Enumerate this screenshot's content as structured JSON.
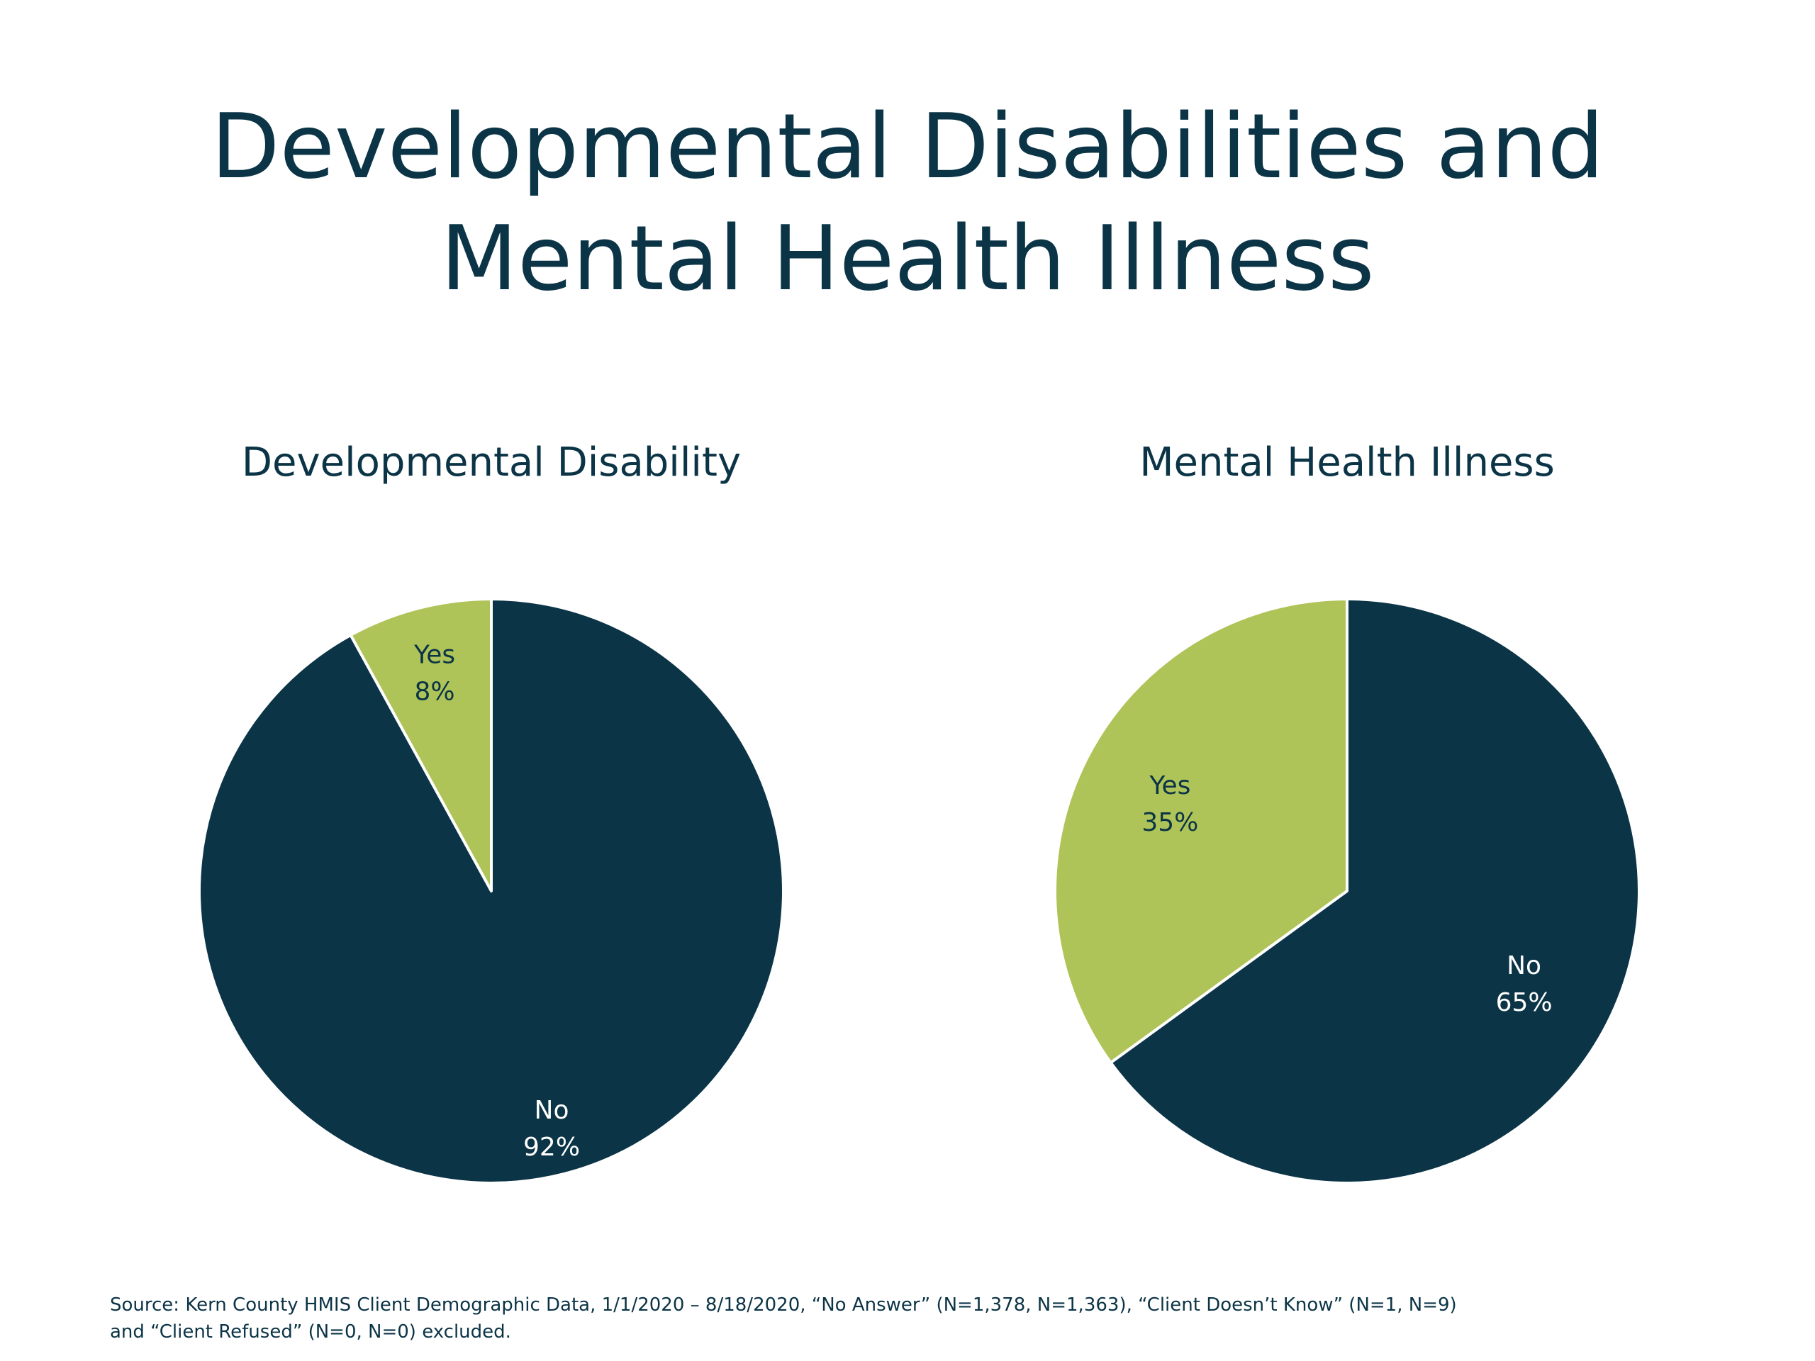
{
  "title_lines": [
    "Developmental Disabilities and",
    "Mental Health Illness"
  ],
  "colors": {
    "no": "#0b3446",
    "yes": "#afc458",
    "no_label_text": "#ffffff",
    "yes_label_text": "#0b3446"
  },
  "chart_data": [
    {
      "type": "pie",
      "title": "Developmental Disability",
      "slices": [
        {
          "label": "Yes",
          "value": 8,
          "value_label": "8%",
          "color": "#afc458"
        },
        {
          "label": "No",
          "value": 92,
          "value_label": "92%",
          "color": "#0b3446"
        }
      ]
    },
    {
      "type": "pie",
      "title": "Mental Health Illness",
      "slices": [
        {
          "label": "Yes",
          "value": 35,
          "value_label": "35%",
          "color": "#afc458"
        },
        {
          "label": "No",
          "value": 65,
          "value_label": "65%",
          "color": "#0b3446"
        }
      ]
    }
  ],
  "source_lines": [
    "Source: Kern County HMIS Client Demographic Data, 1/1/2020 – 8/18/2020, “No Answer” (N=1,378, N=1,363), “Client Doesn’t Know” (N=1, N=9)",
    "and “Client Refused” (N=0, N=0) excluded."
  ]
}
